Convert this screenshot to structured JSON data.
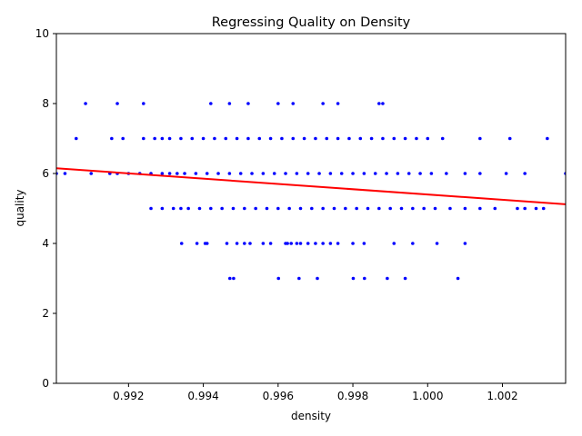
{
  "chart_data": {
    "type": "scatter",
    "title": "Regressing Quality on Density",
    "xlabel": "density",
    "ylabel": "quality",
    "xlim": [
      0.99007,
      1.00369
    ],
    "ylim": [
      0,
      10
    ],
    "xticks": [
      0.992,
      0.994,
      0.996,
      0.998,
      1.0,
      1.002
    ],
    "xtick_labels": [
      "0.992",
      "0.994",
      "0.996",
      "0.998",
      "1.000",
      "1.002"
    ],
    "yticks": [
      0,
      2,
      4,
      6,
      8,
      10
    ],
    "ytick_labels": [
      "0",
      "2",
      "4",
      "6",
      "8",
      "10"
    ],
    "grid": false,
    "legend": "none",
    "point_color": "#0000ff",
    "line_color": "#ff0000",
    "regression_line": {
      "x": [
        0.99007,
        1.00369
      ],
      "y": [
        6.15,
        5.12
      ]
    },
    "series": [
      {
        "values_by_quality": {
          "3": [
            0.99471,
            0.99481,
            0.99601,
            0.99656,
            0.99705,
            0.99801,
            0.99831,
            0.99892,
            0.9994,
            1.00081
          ],
          "4": [
            0.99342,
            0.99383,
            0.99405,
            0.9941,
            0.99463,
            0.9949,
            0.9951,
            0.99525,
            0.9956,
            0.9958,
            0.9962,
            0.99625,
            0.99635,
            0.9965,
            0.9966,
            0.9968,
            0.997,
            0.9972,
            0.9974,
            0.9976,
            0.998,
            0.9983,
            0.9991,
            0.9996,
            1.00025,
            1.001
          ],
          "5": [
            0.9926,
            0.9929,
            0.9932,
            0.9934,
            0.9936,
            0.9939,
            0.9942,
            0.9945,
            0.9948,
            0.9951,
            0.9954,
            0.9957,
            0.996,
            0.9963,
            0.9966,
            0.9969,
            0.9972,
            0.9975,
            0.9978,
            0.9981,
            0.9984,
            0.9987,
            0.999,
            0.9993,
            0.9996,
            0.9999,
            1.0002,
            1.0006,
            1.001,
            1.0014,
            1.0018,
            1.0024,
            1.0026,
            1.0029,
            1.0031
          ],
          "6": [
            0.99007,
            0.9903,
            0.991,
            0.9915,
            0.9917,
            0.992,
            0.9923,
            0.9926,
            0.9929,
            0.9931,
            0.9933,
            0.9935,
            0.9938,
            0.9941,
            0.9944,
            0.9947,
            0.995,
            0.9953,
            0.9956,
            0.9959,
            0.9962,
            0.9965,
            0.9968,
            0.9971,
            0.9974,
            0.9977,
            0.998,
            0.9983,
            0.9986,
            0.9989,
            0.9992,
            0.9995,
            0.9998,
            1.0001,
            1.0005,
            1.001,
            1.0014,
            1.0021,
            1.0026,
            1.00369
          ],
          "7": [
            0.9906,
            0.99155,
            0.99185,
            0.9924,
            0.9927,
            0.9929,
            0.9931,
            0.9934,
            0.9937,
            0.994,
            0.9943,
            0.9946,
            0.9949,
            0.9952,
            0.9955,
            0.9958,
            0.9961,
            0.9964,
            0.9967,
            0.997,
            0.9973,
            0.9976,
            0.9979,
            0.9982,
            0.9985,
            0.9988,
            0.9991,
            0.9994,
            0.9997,
            1.0,
            1.0004,
            1.0014,
            1.0022,
            1.0032
          ],
          "8": [
            0.99085,
            0.9917,
            0.9924,
            0.9942,
            0.9947,
            0.9952,
            0.996,
            0.9964,
            0.9972,
            0.9976,
            0.9987,
            0.9988
          ]
        }
      }
    ]
  }
}
